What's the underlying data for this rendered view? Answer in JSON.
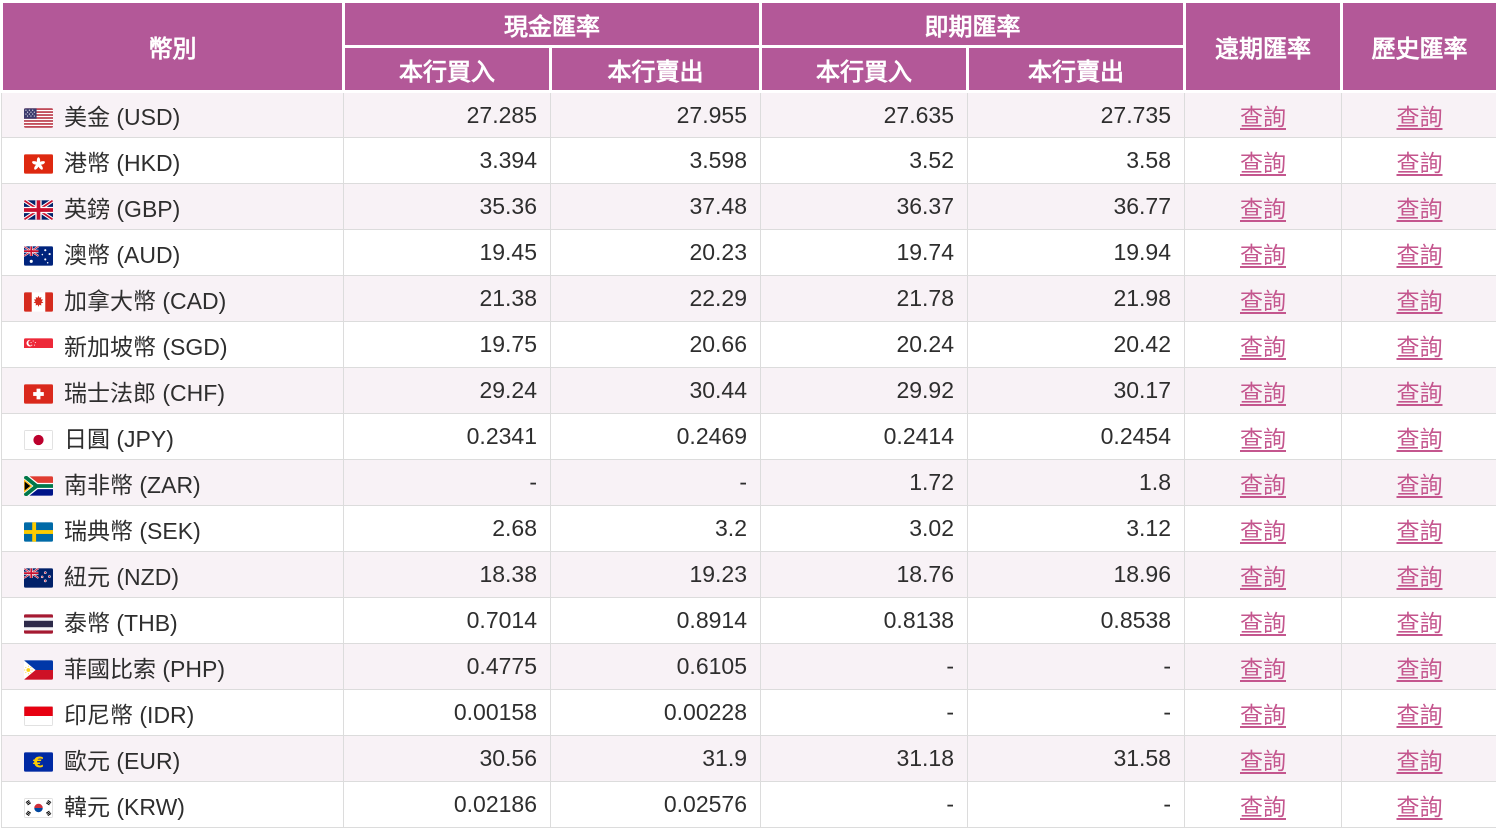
{
  "table": {
    "headers": {
      "currency": "幣別",
      "cash_group": "現金匯率",
      "spot_group": "即期匯率",
      "buy": "本行買入",
      "sell": "本行賣出",
      "forward": "遠期匯率",
      "history": "歷史匯率"
    },
    "query_label": "查詢",
    "empty_value": "-",
    "rows": [
      {
        "flag_icon": "usd-flag-icon",
        "currency": "美金 (USD)",
        "cash_buy": "27.285",
        "cash_sell": "27.955",
        "spot_buy": "27.635",
        "spot_sell": "27.735",
        "forward": "查詢",
        "history": "查詢"
      },
      {
        "flag_icon": "hkd-flag-icon",
        "currency": "港幣 (HKD)",
        "cash_buy": "3.394",
        "cash_sell": "3.598",
        "spot_buy": "3.52",
        "spot_sell": "3.58",
        "forward": "查詢",
        "history": "查詢"
      },
      {
        "flag_icon": "gbp-flag-icon",
        "currency": "英鎊 (GBP)",
        "cash_buy": "35.36",
        "cash_sell": "37.48",
        "spot_buy": "36.37",
        "spot_sell": "36.77",
        "forward": "查詢",
        "history": "查詢"
      },
      {
        "flag_icon": "aud-flag-icon",
        "currency": "澳幣 (AUD)",
        "cash_buy": "19.45",
        "cash_sell": "20.23",
        "spot_buy": "19.74",
        "spot_sell": "19.94",
        "forward": "查詢",
        "history": "查詢"
      },
      {
        "flag_icon": "cad-flag-icon",
        "currency": "加拿大幣 (CAD)",
        "cash_buy": "21.38",
        "cash_sell": "22.29",
        "spot_buy": "21.78",
        "spot_sell": "21.98",
        "forward": "查詢",
        "history": "查詢"
      },
      {
        "flag_icon": "sgd-flag-icon",
        "currency": "新加坡幣 (SGD)",
        "cash_buy": "19.75",
        "cash_sell": "20.66",
        "spot_buy": "20.24",
        "spot_sell": "20.42",
        "forward": "查詢",
        "history": "查詢"
      },
      {
        "flag_icon": "chf-flag-icon",
        "currency": "瑞士法郎 (CHF)",
        "cash_buy": "29.24",
        "cash_sell": "30.44",
        "spot_buy": "29.92",
        "spot_sell": "30.17",
        "forward": "查詢",
        "history": "查詢"
      },
      {
        "flag_icon": "jpy-flag-icon",
        "currency": "日圓 (JPY)",
        "cash_buy": "0.2341",
        "cash_sell": "0.2469",
        "spot_buy": "0.2414",
        "spot_sell": "0.2454",
        "forward": "查詢",
        "history": "查詢"
      },
      {
        "flag_icon": "zar-flag-icon",
        "currency": "南非幣 (ZAR)",
        "cash_buy": "-",
        "cash_sell": "-",
        "spot_buy": "1.72",
        "spot_sell": "1.8",
        "forward": "查詢",
        "history": "查詢"
      },
      {
        "flag_icon": "sek-flag-icon",
        "currency": "瑞典幣 (SEK)",
        "cash_buy": "2.68",
        "cash_sell": "3.2",
        "spot_buy": "3.02",
        "spot_sell": "3.12",
        "forward": "查詢",
        "history": "查詢"
      },
      {
        "flag_icon": "nzd-flag-icon",
        "currency": "紐元 (NZD)",
        "cash_buy": "18.38",
        "cash_sell": "19.23",
        "spot_buy": "18.76",
        "spot_sell": "18.96",
        "forward": "查詢",
        "history": "查詢"
      },
      {
        "flag_icon": "thb-flag-icon",
        "currency": "泰幣 (THB)",
        "cash_buy": "0.7014",
        "cash_sell": "0.8914",
        "spot_buy": "0.8138",
        "spot_sell": "0.8538",
        "forward": "查詢",
        "history": "查詢"
      },
      {
        "flag_icon": "php-flag-icon",
        "currency": "菲國比索 (PHP)",
        "cash_buy": "0.4775",
        "cash_sell": "0.6105",
        "spot_buy": "-",
        "spot_sell": "-",
        "forward": "查詢",
        "history": "查詢"
      },
      {
        "flag_icon": "idr-flag-icon",
        "currency": "印尼幣 (IDR)",
        "cash_buy": "0.00158",
        "cash_sell": "0.00228",
        "spot_buy": "-",
        "spot_sell": "-",
        "forward": "查詢",
        "history": "查詢"
      },
      {
        "flag_icon": "eur-flag-icon",
        "currency": "歐元 (EUR)",
        "cash_buy": "30.56",
        "cash_sell": "31.9",
        "spot_buy": "31.18",
        "spot_sell": "31.58",
        "forward": "查詢",
        "history": "查詢"
      },
      {
        "flag_icon": "krw-flag-icon",
        "currency": "韓元 (KRW)",
        "cash_buy": "0.02186",
        "cash_sell": "0.02576",
        "spot_buy": "-",
        "spot_sell": "-",
        "forward": "查詢",
        "history": "查詢"
      }
    ]
  },
  "colors": {
    "header_bg": "#b35898",
    "header_text": "#ffffff",
    "link": "#c4568e",
    "row_alt_bg": "#f8f2f6",
    "row_bg": "#ffffff",
    "text": "#2e2e2e",
    "border": "#dcdcdc"
  }
}
